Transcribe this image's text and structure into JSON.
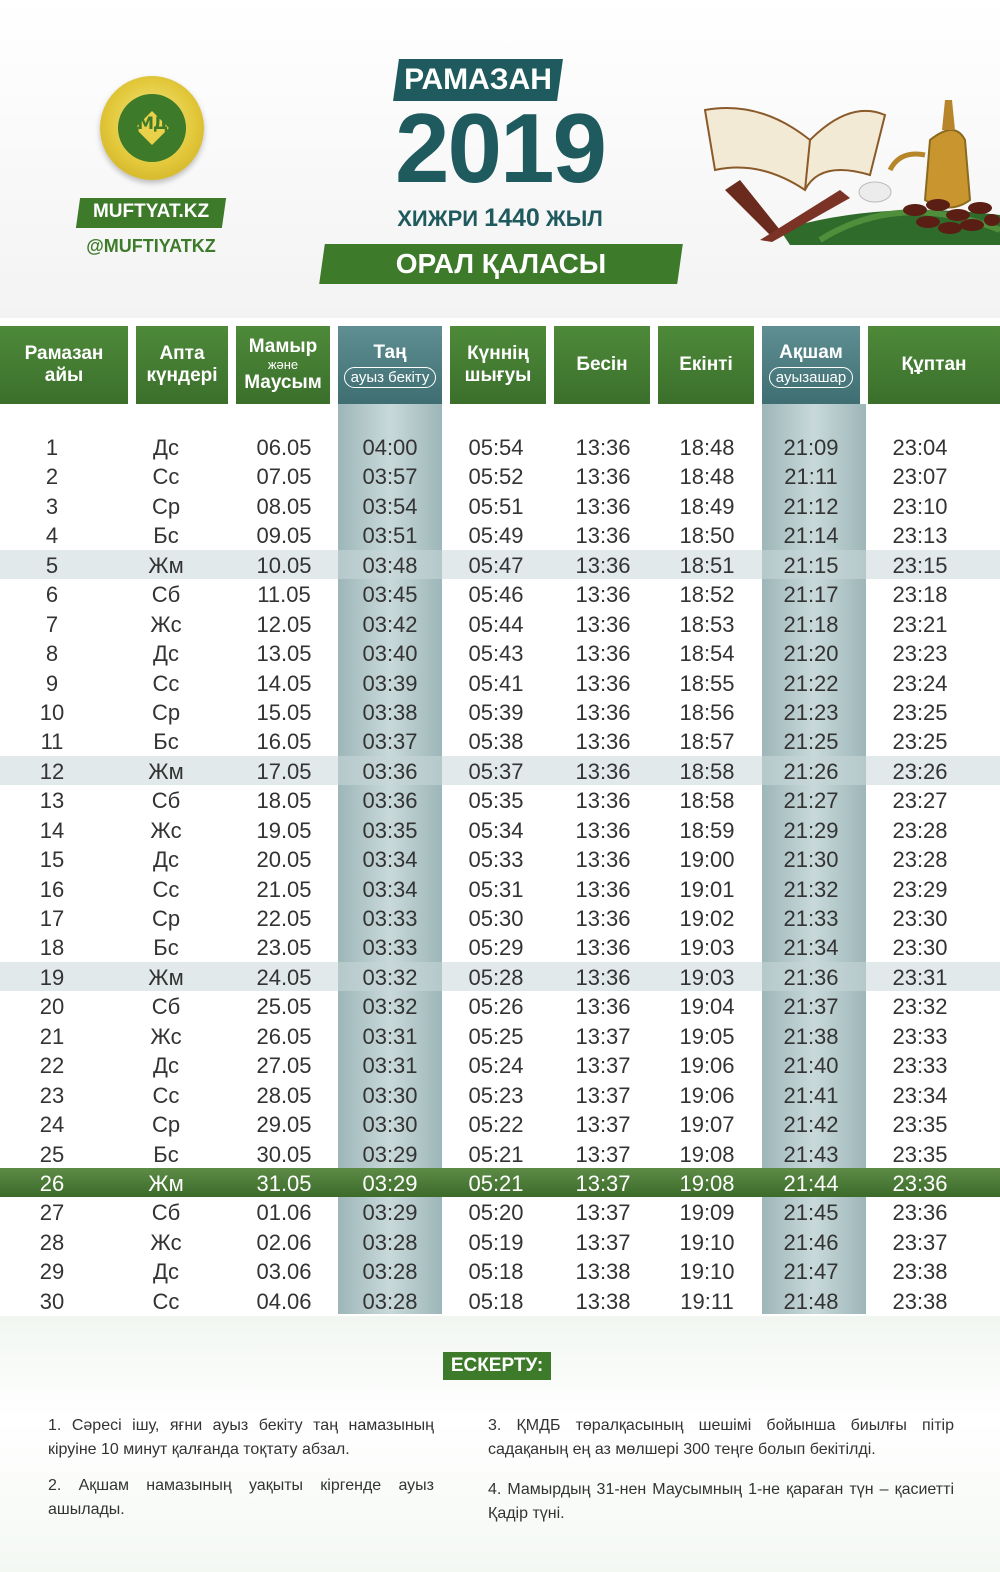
{
  "header": {
    "logo_glyph": "ҚМДБ",
    "site": "MUFTYAT.KZ",
    "handle": "@MUFTIYATKZ",
    "ramazan": "РАМАЗАН",
    "year": "2019",
    "hijri_pre": "ХИЖРИ ",
    "hijri_num": "1440",
    "hijri_post": " ЖЫЛ",
    "city": "ОРАЛ ҚАЛАСЫ"
  },
  "columns": {
    "c1a": "Рамазан",
    "c1b": "айы",
    "c2a": "Апта",
    "c2b": "күндері",
    "c3a": "Мамыр",
    "c3b": "және",
    "c3c": "Маусым",
    "c4a": "Таң",
    "c4b": "ауыз бекіту",
    "c5a": "Күннің",
    "c5b": "шығуы",
    "c6": "Бесін",
    "c7": "Екінті",
    "c8a": "Ақшам",
    "c8b": "ауызашар",
    "c9": "Құптан"
  },
  "rows": [
    [
      "1",
      "Дс",
      "06.05",
      "04:00",
      "05:54",
      "13:36",
      "18:48",
      "21:09",
      "23:04"
    ],
    [
      "2",
      "Сс",
      "07.05",
      "03:57",
      "05:52",
      "13:36",
      "18:48",
      "21:11",
      "23:07"
    ],
    [
      "3",
      "Ср",
      "08.05",
      "03:54",
      "05:51",
      "13:36",
      "18:49",
      "21:12",
      "23:10"
    ],
    [
      "4",
      "Бс",
      "09.05",
      "03:51",
      "05:49",
      "13:36",
      "18:50",
      "21:14",
      "23:13"
    ],
    [
      "5",
      "Жм",
      "10.05",
      "03:48",
      "05:47",
      "13:36",
      "18:51",
      "21:15",
      "23:15"
    ],
    [
      "6",
      "Сб",
      "11.05",
      "03:45",
      "05:46",
      "13:36",
      "18:52",
      "21:17",
      "23:18"
    ],
    [
      "7",
      "Жс",
      "12.05",
      "03:42",
      "05:44",
      "13:36",
      "18:53",
      "21:18",
      "23:21"
    ],
    [
      "8",
      "Дс",
      "13.05",
      "03:40",
      "05:43",
      "13:36",
      "18:54",
      "21:20",
      "23:23"
    ],
    [
      "9",
      "Сс",
      "14.05",
      "03:39",
      "05:41",
      "13:36",
      "18:55",
      "21:22",
      "23:24"
    ],
    [
      "10",
      "Ср",
      "15.05",
      "03:38",
      "05:39",
      "13:36",
      "18:56",
      "21:23",
      "23:25"
    ],
    [
      "11",
      "Бс",
      "16.05",
      "03:37",
      "05:38",
      "13:36",
      "18:57",
      "21:25",
      "23:25"
    ],
    [
      "12",
      "Жм",
      "17.05",
      "03:36",
      "05:37",
      "13:36",
      "18:58",
      "21:26",
      "23:26"
    ],
    [
      "13",
      "Сб",
      "18.05",
      "03:36",
      "05:35",
      "13:36",
      "18:58",
      "21:27",
      "23:27"
    ],
    [
      "14",
      "Жс",
      "19.05",
      "03:35",
      "05:34",
      "13:36",
      "18:59",
      "21:29",
      "23:28"
    ],
    [
      "15",
      "Дс",
      "20.05",
      "03:34",
      "05:33",
      "13:36",
      "19:00",
      "21:30",
      "23:28"
    ],
    [
      "16",
      "Сс",
      "21.05",
      "03:34",
      "05:31",
      "13:36",
      "19:01",
      "21:32",
      "23:29"
    ],
    [
      "17",
      "Ср",
      "22.05",
      "03:33",
      "05:30",
      "13:36",
      "19:02",
      "21:33",
      "23:30"
    ],
    [
      "18",
      "Бс",
      "23.05",
      "03:33",
      "05:29",
      "13:36",
      "19:03",
      "21:34",
      "23:30"
    ],
    [
      "19",
      "Жм",
      "24.05",
      "03:32",
      "05:28",
      "13:36",
      "19:03",
      "21:36",
      "23:31"
    ],
    [
      "20",
      "Сб",
      "25.05",
      "03:32",
      "05:26",
      "13:36",
      "19:04",
      "21:37",
      "23:32"
    ],
    [
      "21",
      "Жс",
      "26.05",
      "03:31",
      "05:25",
      "13:37",
      "19:05",
      "21:38",
      "23:33"
    ],
    [
      "22",
      "Дс",
      "27.05",
      "03:31",
      "05:24",
      "13:37",
      "19:06",
      "21:40",
      "23:33"
    ],
    [
      "23",
      "Сс",
      "28.05",
      "03:30",
      "05:23",
      "13:37",
      "19:06",
      "21:41",
      "23:34"
    ],
    [
      "24",
      "Ср",
      "29.05",
      "03:30",
      "05:22",
      "13:37",
      "19:07",
      "21:42",
      "23:35"
    ],
    [
      "25",
      "Бс",
      "30.05",
      "03:29",
      "05:21",
      "13:37",
      "19:08",
      "21:43",
      "23:35"
    ],
    [
      "26",
      "Жм",
      "31.05",
      "03:29",
      "05:21",
      "13:37",
      "19:08",
      "21:44",
      "23:36"
    ],
    [
      "27",
      "Сб",
      "01.06",
      "03:29",
      "05:20",
      "13:37",
      "19:09",
      "21:45",
      "23:36"
    ],
    [
      "28",
      "Жс",
      "02.06",
      "03:28",
      "05:19",
      "13:37",
      "19:10",
      "21:46",
      "23:37"
    ],
    [
      "29",
      "Дс",
      "03.06",
      "03:28",
      "05:18",
      "13:38",
      "19:10",
      "21:47",
      "23:38"
    ],
    [
      "30",
      "Сс",
      "04.06",
      "03:28",
      "05:18",
      "13:38",
      "19:11",
      "21:48",
      "23:38"
    ]
  ],
  "notes": {
    "title": "ЕСКЕРТУ:",
    "n1": "1. Сәресі ішу, яғни ауыз бекіту таң намазының кіруіне 10 минут қалғанда тоқтату абзал.",
    "n2": "2. Ақшам намазының уақыты кіргенде ауыз ашылады.",
    "n3": "3. ҚМДБ төралқасының шешімі бойынша биылғы пітір садақаның ең аз мөлшері 300 теңге болып бекітілді.",
    "n4": "4. Мамырдың 31-нен Маусымның 1-не қараған түн – қасиетті Қадір түні."
  },
  "colors": {
    "green": "#3d7a2a",
    "teal": "#1f5b5e",
    "teal_col": "#9db6b8"
  }
}
